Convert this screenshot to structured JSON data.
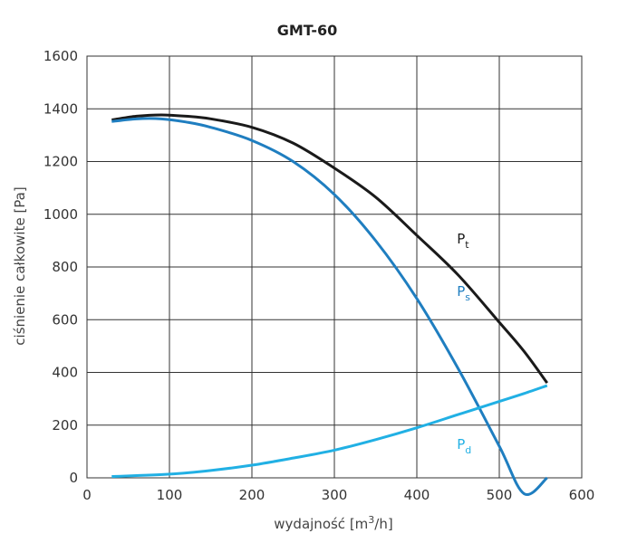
{
  "chart_data": {
    "type": "line",
    "title": "GMT-60",
    "xlabel": {
      "main": "wydajność [m",
      "sup": "3",
      "tail": "/h]"
    },
    "ylabel": "ciśnienie całkowite [Pa]",
    "xlim": [
      0,
      600
    ],
    "ylim": [
      0,
      1600
    ],
    "xticks": [
      "0",
      "100",
      "200",
      "300",
      "400",
      "500",
      "600"
    ],
    "yticks": [
      "0",
      "200",
      "400",
      "600",
      "800",
      "1000",
      "1200",
      "1400",
      "1600"
    ],
    "grid": true,
    "series": [
      {
        "name": "P",
        "sub": "t",
        "color": "#1a1a1a",
        "label_at": [
          420,
          890
        ],
        "x": [
          30,
          60,
          90,
          120,
          150,
          200,
          250,
          300,
          350,
          400,
          450,
          500,
          530,
          558
        ],
        "y": [
          1358,
          1372,
          1377,
          1372,
          1362,
          1330,
          1270,
          1175,
          1065,
          920,
          770,
          590,
          480,
          360
        ]
      },
      {
        "name": "P",
        "sub": "s",
        "color": "#1f7ec0",
        "label_at": [
          420,
          690
        ],
        "x": [
          30,
          60,
          90,
          120,
          150,
          200,
          250,
          300,
          350,
          400,
          450,
          500,
          530,
          558
        ],
        "y": [
          1352,
          1362,
          1362,
          1350,
          1330,
          1280,
          1200,
          1075,
          900,
          680,
          415,
          120,
          -60,
          0
        ]
      },
      {
        "name": "P",
        "sub": "d",
        "color": "#21b0e4",
        "label_at": [
          420,
          110
        ],
        "x": [
          30,
          100,
          150,
          200,
          250,
          300,
          350,
          400,
          450,
          500,
          530,
          558
        ],
        "y": [
          5,
          14,
          28,
          48,
          75,
          105,
          145,
          190,
          240,
          290,
          320,
          350
        ]
      }
    ]
  }
}
